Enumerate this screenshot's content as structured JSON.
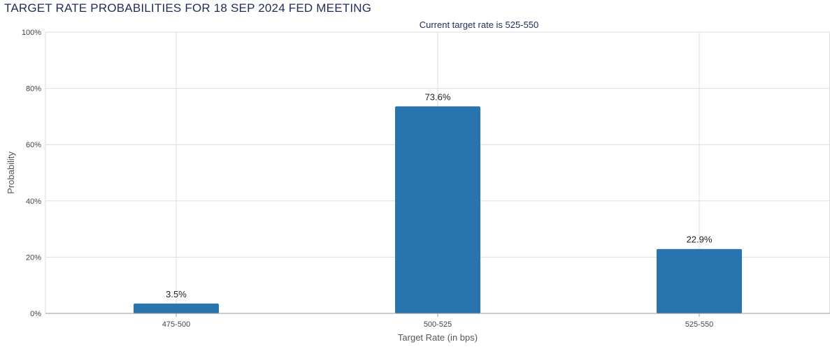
{
  "chart_data": {
    "type": "bar",
    "title": "TARGET RATE PROBABILITIES FOR 18 SEP 2024 FED MEETING",
    "subtitle": "Current target rate is 525-550",
    "categories": [
      "475-500",
      "500-525",
      "525-550"
    ],
    "values": [
      3.5,
      73.6,
      22.9
    ],
    "data_labels": [
      "3.5%",
      "73.6%",
      "22.9%"
    ],
    "xlabel": "Target Rate (in bps)",
    "ylabel": "Probability",
    "ylim": [
      0,
      100
    ],
    "yticks": [
      0,
      20,
      40,
      60,
      80,
      100
    ],
    "ytick_labels": [
      "0%",
      "20%",
      "40%",
      "60%",
      "80%",
      "100%"
    ],
    "grid": true,
    "bar_color": "#2774ae",
    "grid_color": "#dddddd",
    "title_color": "#1f2d5a"
  }
}
